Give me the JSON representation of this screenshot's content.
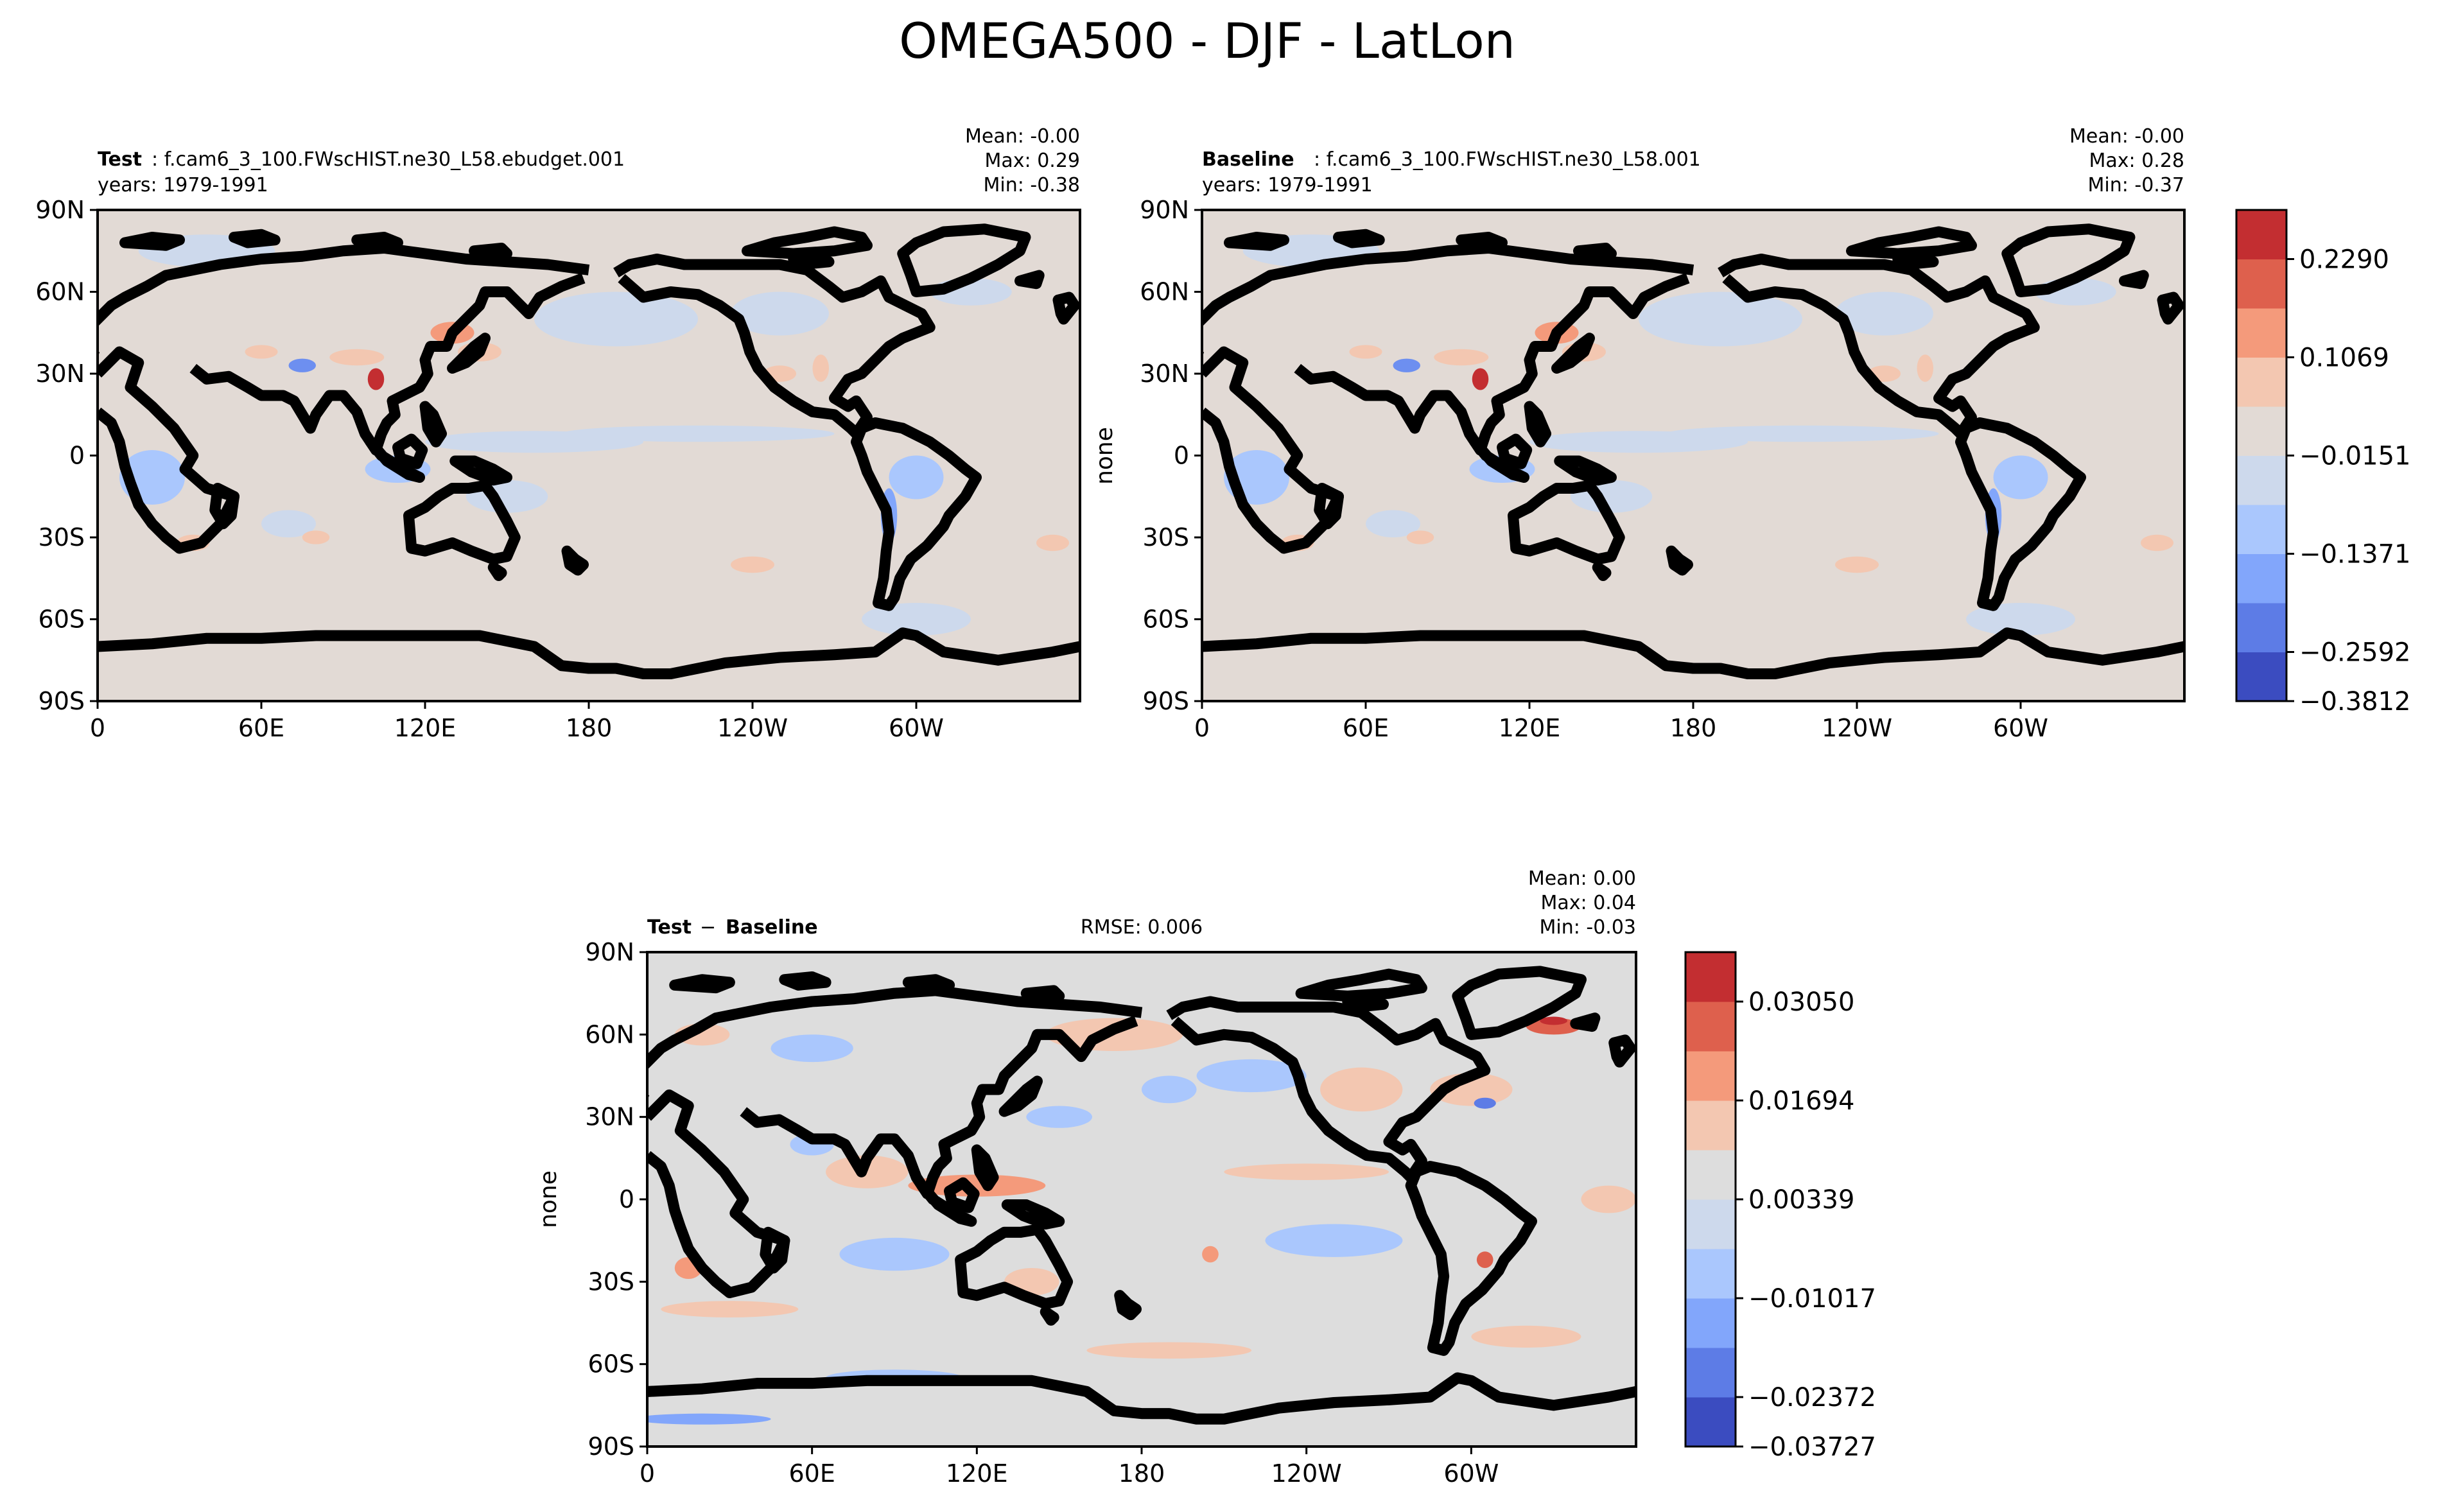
{
  "figure_title": "OMEGA500 - DJF - LatLon",
  "axes": {
    "lat_ticks": [
      "90N",
      "60N",
      "30N",
      "0",
      "30S",
      "60S",
      "90S"
    ],
    "lon_ticks": [
      "0",
      "60E",
      "120E",
      "180",
      "120W",
      "60W"
    ]
  },
  "chart_data": [
    {
      "type": "heatmap",
      "panel": "test",
      "title_bold": "Test",
      "title_rest": ": f.cam6_3_100.FWscHIST.ne30_L58.ebudget.001",
      "years": "years: 1979-1991",
      "stats": {
        "mean": "Mean: -0.00",
        "max": "Max:  0.29",
        "min": "Min: -0.38"
      },
      "ylabel": "",
      "xrange": [
        0,
        360
      ],
      "yrange": [
        -90,
        90
      ]
    },
    {
      "type": "heatmap",
      "panel": "baseline",
      "title_bold": "Baseline",
      "title_rest": ": f.cam6_3_100.FWscHIST.ne30_L58.001",
      "years": "years: 1979-1991",
      "stats": {
        "mean": "Mean: -0.00",
        "max": "Max:  0.28",
        "min": "Min: -0.37"
      },
      "ylabel": "none",
      "xrange": [
        0,
        360
      ],
      "yrange": [
        -90,
        90
      ],
      "colorbar": {
        "ticks": [
          "0.2290",
          "0.1069",
          "−0.0151",
          "−0.1371",
          "−0.2592",
          "−0.3812"
        ],
        "colors": [
          "#3b4cc0",
          "#5d7ce6",
          "#82a6fb",
          "#aac7fd",
          "#cdd9ec",
          "#e2dad5",
          "#f3c7b1",
          "#f49a7b",
          "#de604d",
          "#c32e31"
        ]
      }
    },
    {
      "type": "heatmap",
      "panel": "difference",
      "title_bold": "Test",
      "title_mid": " − ",
      "title_bold2": "Baseline",
      "rmse": "RMSE: 0.006",
      "stats": {
        "mean": "Mean:  0.00",
        "max": "Max:  0.04",
        "min": "Min: -0.03"
      },
      "ylabel": "none",
      "xrange": [
        0,
        360
      ],
      "yrange": [
        -90,
        90
      ],
      "colorbar": {
        "ticks": [
          "0.03050",
          "0.01694",
          "0.00339",
          "−0.01017",
          "−0.02372",
          "−0.03727"
        ],
        "colors": [
          "#3b4cc0",
          "#5d7ce6",
          "#82a6fb",
          "#aac7fd",
          "#cdd9ec",
          "#dddddd",
          "#f3c7b1",
          "#f49a7b",
          "#de604d",
          "#c32e31"
        ]
      }
    }
  ]
}
